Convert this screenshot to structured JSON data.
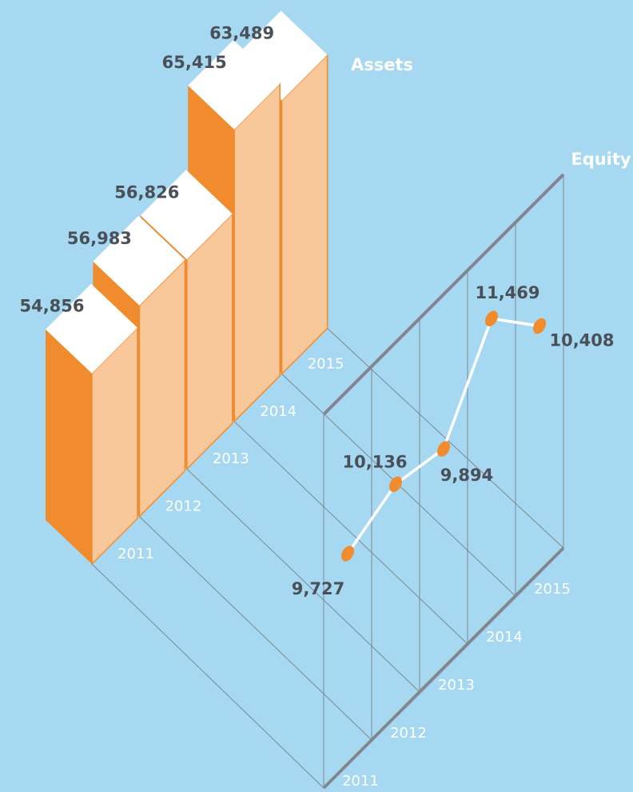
{
  "chart_data": [
    {
      "type": "bar",
      "title": "Assets",
      "categories": [
        "2011",
        "2012",
        "2013",
        "2014",
        "2015"
      ],
      "values": [
        54856,
        56983,
        56826,
        65415,
        63489
      ],
      "value_labels": [
        "54,856",
        "56,983",
        "56,826",
        "65,415",
        "63,489"
      ],
      "ylim": [
        35000,
        70000
      ],
      "color": "#f08c2e"
    },
    {
      "type": "line",
      "title": "Equity",
      "categories": [
        "2011",
        "2012",
        "2013",
        "2014",
        "2015"
      ],
      "values": [
        9727,
        10136,
        9894,
        11469,
        10408
      ],
      "value_labels": [
        "9,727",
        "10,136",
        "9,894",
        "11,469",
        "10,408"
      ],
      "ylim": [
        5700,
        12850
      ],
      "color": "#f08c2e"
    }
  ]
}
